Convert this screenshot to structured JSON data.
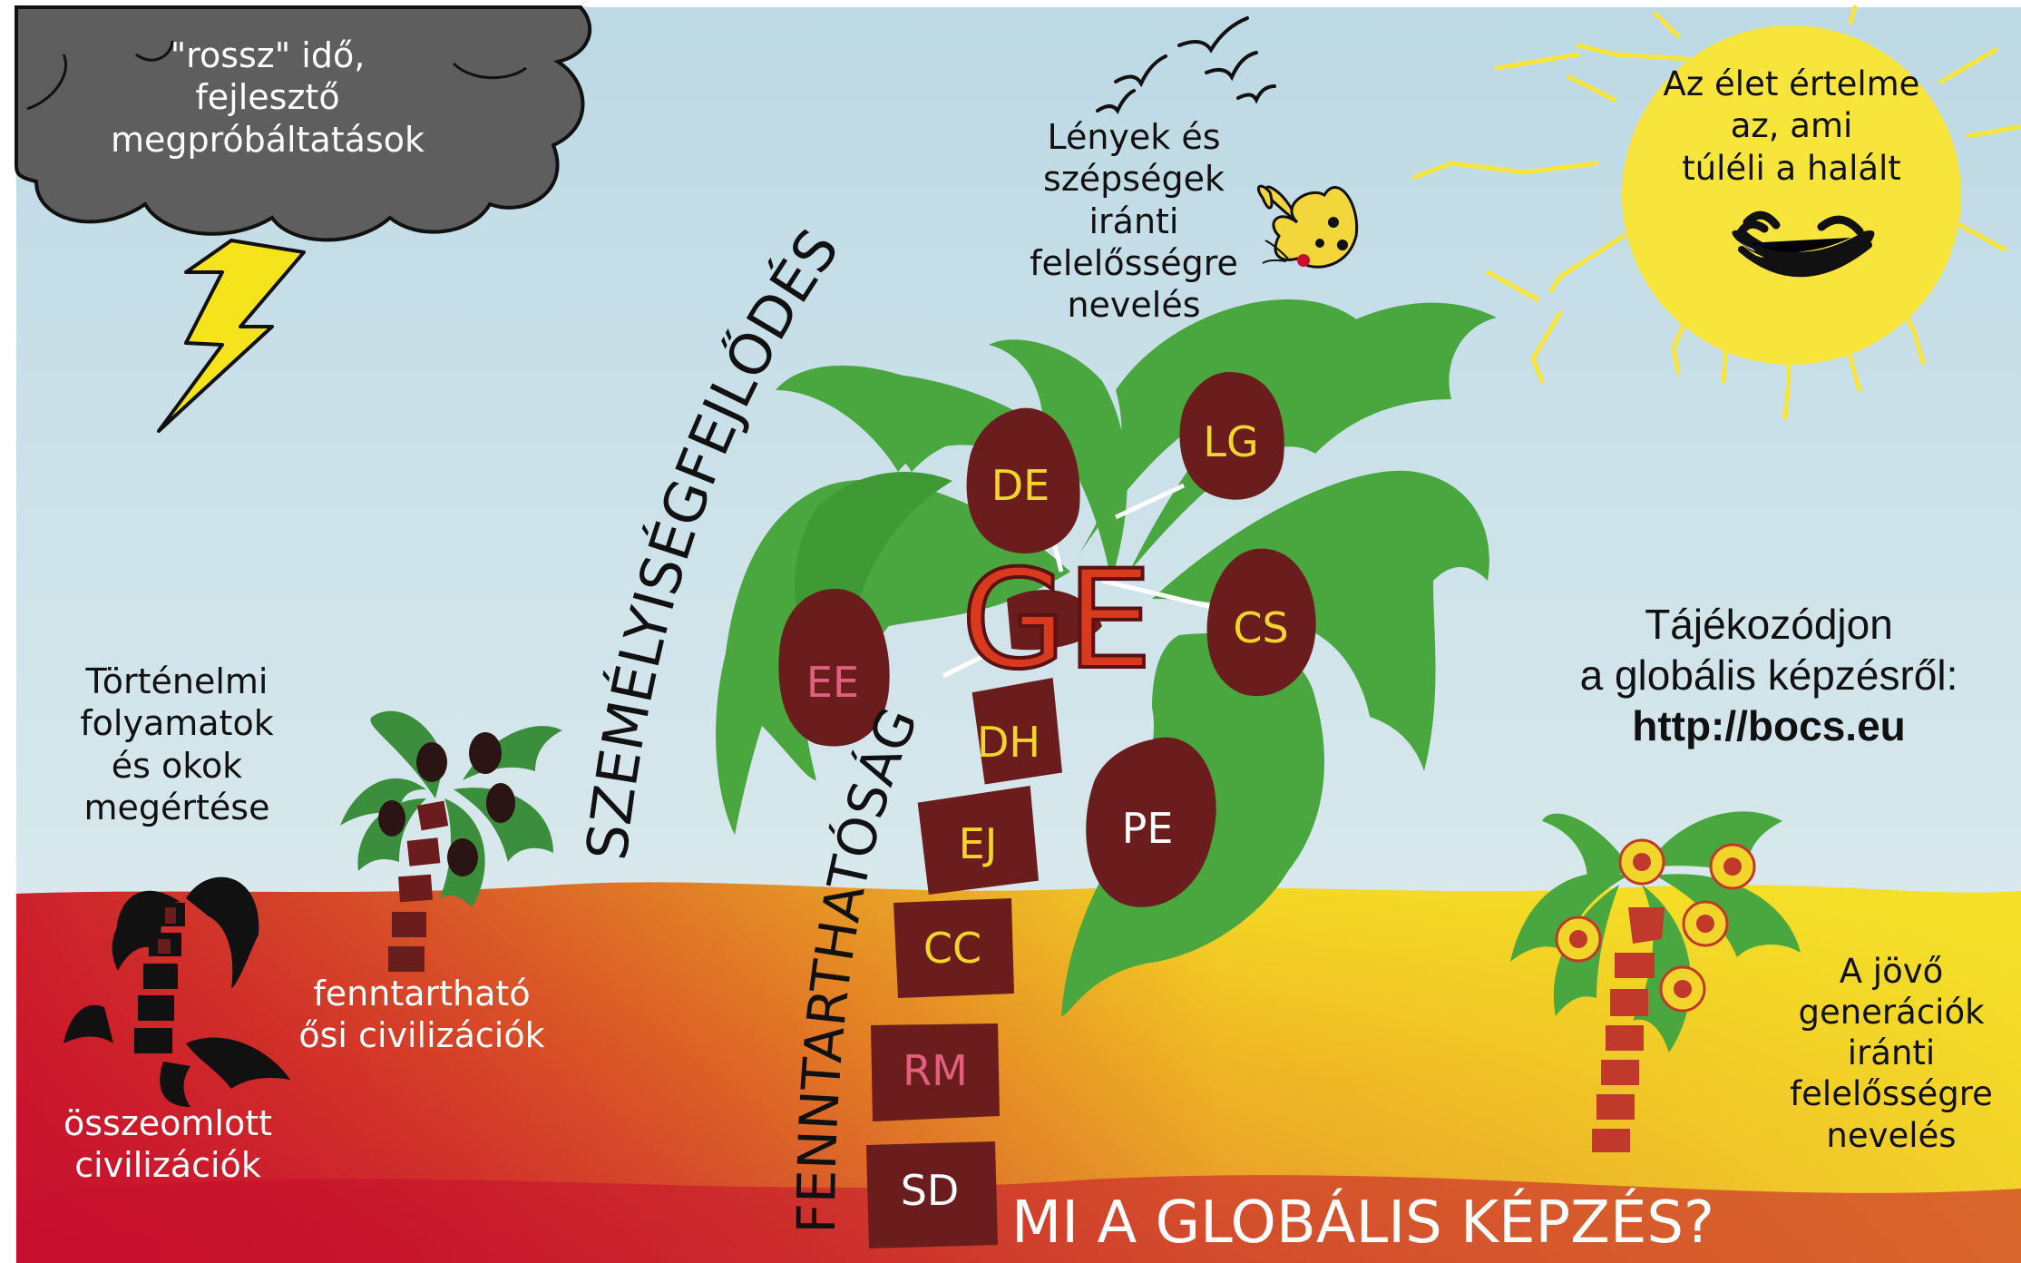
{
  "title": "MI A GLOBÁLIS KÉPZÉS?",
  "curved_labels": {
    "personality": "SZEMÉLYISÉGFEJLŐDÉS",
    "sustainability": "FENNTARTHATÓSÁG"
  },
  "center_label": "GE",
  "fruits": [
    "DE",
    "LG",
    "EE",
    "CS",
    "PE"
  ],
  "trunk_segments": [
    "DH",
    "EJ",
    "CC",
    "RM",
    "SD"
  ],
  "texts": {
    "cloud": [
      "\"rossz\" idő,",
      "fejlesztő",
      "megpróbáltatások"
    ],
    "beings": [
      "Lények és",
      "szépségek",
      "iránti",
      "felelősségre",
      "nevelés"
    ],
    "sun": [
      "Az élet értelme",
      "az, ami",
      "túléli a halált"
    ],
    "history": [
      "Történelmi",
      "folyamatok",
      "és okok",
      "megértése"
    ],
    "sustainable_civ": [
      "fenntartható",
      "ősi civilizációk"
    ],
    "collapsed_civ": [
      "összeomlott",
      "civilizációk"
    ],
    "future": [
      "A jövő",
      "generációk",
      "iránti",
      "felelősségre",
      "nevelés"
    ],
    "info": [
      "Tájékozódjon",
      "a globális képzésről:"
    ],
    "url": "http://bocs.eu"
  },
  "icons": [
    "storm-cloud-icon",
    "lightning-icon",
    "birds-icon",
    "butterfly-icon",
    "smiling-sun-icon"
  ],
  "colors": {
    "sky": "#c8e1ea",
    "leaf": "#4aa63f",
    "dark_leaf": "#2e7d32",
    "fruit": "#6b1d1d",
    "trunk": "#6b1d1d",
    "label_yellow": "#f2d52a",
    "label_pink": "#e0607e",
    "label_white": "#ffffff",
    "ge_red": "#d93a1e",
    "sun": "#f7e53b",
    "cloud": "#595959",
    "ground_top": "#f5e42a",
    "ground_bottom": "#c8102e"
  }
}
